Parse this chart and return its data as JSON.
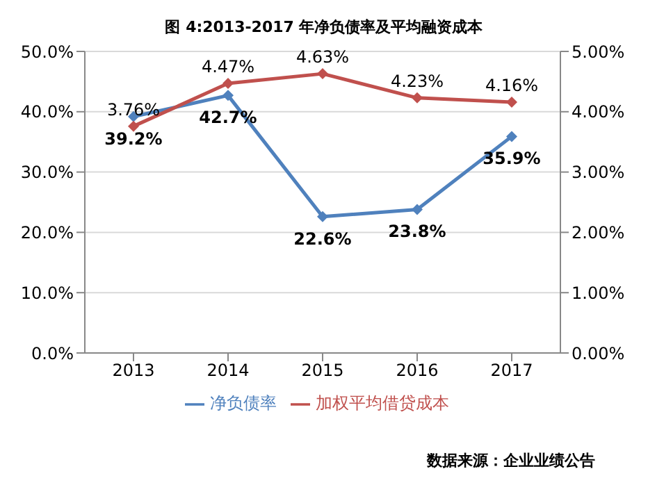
{
  "chart_data": {
    "type": "line",
    "title": "图 4:2013-2017 年净负债率及平均融资成本",
    "categories": [
      "2013",
      "2014",
      "2015",
      "2016",
      "2017"
    ],
    "series": [
      {
        "name": "净负债率",
        "color": "#4f81bd",
        "values": [
          39.2,
          42.7,
          22.6,
          23.8,
          35.9
        ],
        "value_labels": [
          "39.2%",
          "42.7%",
          "22.6%",
          "23.8%",
          "35.9%"
        ]
      },
      {
        "name": "加权平均借贷成本",
        "color": "#c0504d",
        "axis": "y2",
        "values": [
          3.76,
          4.47,
          4.63,
          4.23,
          4.16
        ],
        "value_labels": [
          "3.76%",
          "4.47%",
          "4.63%",
          "4.23%",
          "4.16%"
        ]
      }
    ],
    "ylim": [
      0,
      50
    ],
    "yticks": [
      {
        "value": 0,
        "label": "0.0%"
      },
      {
        "value": 10,
        "label": "10.0%"
      },
      {
        "value": 20,
        "label": "20.0%"
      },
      {
        "value": 30,
        "label": "30.0%"
      },
      {
        "value": 40,
        "label": "40.0%"
      },
      {
        "value": 50,
        "label": "50.0%"
      }
    ],
    "y2lim": [
      0,
      5
    ],
    "y2ticks": [
      {
        "value": 0,
        "label": "0.00%"
      },
      {
        "value": 1,
        "label": "1.00%"
      },
      {
        "value": 2,
        "label": "2.00%"
      },
      {
        "value": 3,
        "label": "3.00%"
      },
      {
        "value": 4,
        "label": "4.00%"
      },
      {
        "value": 5,
        "label": "5.00%"
      }
    ],
    "grid": "y",
    "legend": "bottom",
    "marker": "diamond",
    "line_style": "solid",
    "annotations": [
      "数据来源：企业业绩公告"
    ]
  }
}
